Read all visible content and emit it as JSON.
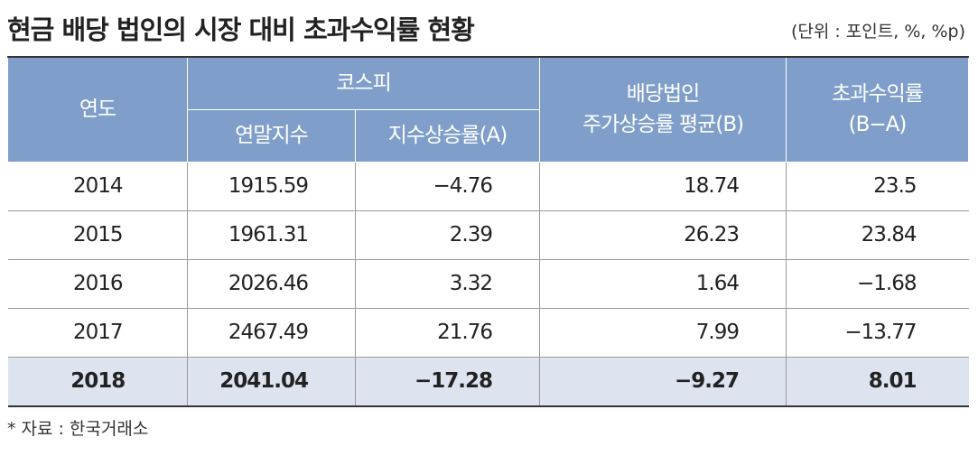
{
  "header": {
    "title": "현금 배당 법인의 시장 대비 초과수익률 현황",
    "unit": "(단위 : 포인트, %, %p)"
  },
  "table": {
    "columns": {
      "year": "연도",
      "kospi": "코스피",
      "index": "연말지수",
      "index_rate": "지수상승률(A)",
      "dividend": "배당법인\n주가상승률 평균(B)",
      "excess": "초과수익률\n(B−A)"
    },
    "rows": [
      [
        "2014",
        "1915.59",
        "−4.76",
        "18.74",
        "23.5"
      ],
      [
        "2015",
        "1961.31",
        "2.39",
        "26.23",
        "23.84"
      ],
      [
        "2016",
        "2026.46",
        "3.32",
        "1.64",
        "−1.68"
      ],
      [
        "2017",
        "2467.49",
        "21.76",
        "7.99",
        "−13.77"
      ],
      [
        "2018",
        "2041.04",
        "−17.28",
        "−9.27",
        "8.01"
      ]
    ]
  },
  "footnote": "* 자료 : 한국거래소"
}
